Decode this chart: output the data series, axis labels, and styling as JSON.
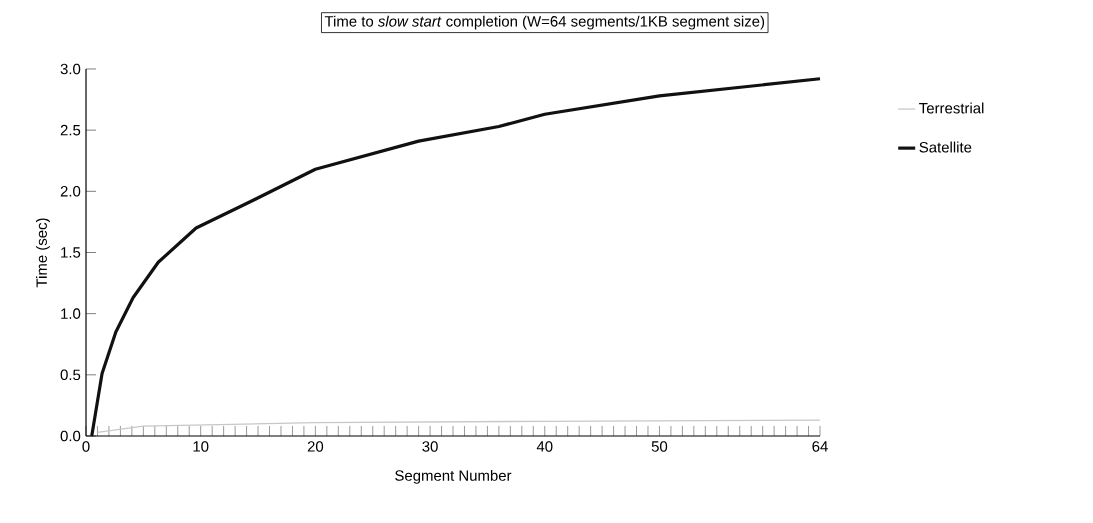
{
  "chart_data": {
    "type": "line",
    "title": "Time to *slow start* completion (W=64 segments/1KB segment size)",
    "xlabel": "Segment Number",
    "ylabel": "Time (sec)",
    "series": [
      {
        "name": "Terrestrial",
        "color": "#c8c8c8",
        "x": [
          1,
          5,
          20,
          40,
          64
        ],
        "values": [
          0.03,
          0.08,
          0.11,
          0.12,
          0.13
        ]
      },
      {
        "name": "Satellite",
        "color": "#111111",
        "x": [
          0.5,
          1.4,
          2.6,
          4.1,
          6.3,
          9.6,
          14,
          20,
          29,
          36,
          40,
          50,
          64
        ],
        "values": [
          0,
          0.51,
          0.85,
          1.13,
          1.42,
          1.7,
          1.9,
          2.18,
          2.41,
          2.53,
          2.63,
          2.78,
          2.92
        ]
      }
    ],
    "xlim": [
      0,
      64
    ],
    "ylim": [
      0,
      3
    ],
    "xticks": [
      0,
      {
        "value": 1,
        "label": null
      },
      {
        "value": 2,
        "label": null
      },
      {
        "value": 3,
        "label": null
      },
      {
        "value": 4,
        "label": null
      },
      {
        "value": 5,
        "label": null
      },
      {
        "value": 6,
        "label": null
      },
      {
        "value": 7,
        "label": null
      },
      {
        "value": 8,
        "label": null
      },
      {
        "value": 9,
        "label": null
      },
      10,
      {
        "value": 11,
        "label": null
      },
      {
        "value": 12,
        "label": null
      },
      {
        "value": 13,
        "label": null
      },
      {
        "value": 14,
        "label": null
      },
      {
        "value": 15,
        "label": null
      },
      {
        "value": 16,
        "label": null
      },
      {
        "value": 17,
        "label": null
      },
      {
        "value": 18,
        "label": null
      },
      {
        "value": 19,
        "label": null
      },
      20,
      {
        "value": 21,
        "label": null
      },
      {
        "value": 22,
        "label": null
      },
      {
        "value": 23,
        "label": null
      },
      {
        "value": 24,
        "label": null
      },
      {
        "value": 25,
        "label": null
      },
      {
        "value": 26,
        "label": null
      },
      {
        "value": 27,
        "label": null
      },
      {
        "value": 28,
        "label": null
      },
      {
        "value": 29,
        "label": null
      },
      30,
      {
        "value": 31,
        "label": null
      },
      {
        "value": 32,
        "label": null
      },
      {
        "value": 33,
        "label": null
      },
      {
        "value": 34,
        "label": null
      },
      {
        "value": 35,
        "label": null
      },
      {
        "value": 36,
        "label": null
      },
      {
        "value": 37,
        "label": null
      },
      {
        "value": 38,
        "label": null
      },
      {
        "value": 39,
        "label": null
      },
      40,
      {
        "value": 41,
        "label": null
      },
      {
        "value": 42,
        "label": null
      },
      {
        "value": 43,
        "label": null
      },
      {
        "value": 44,
        "label": null
      },
      {
        "value": 45,
        "label": null
      },
      {
        "value": 46,
        "label": null
      },
      {
        "value": 47,
        "label": null
      },
      {
        "value": 48,
        "label": null
      },
      {
        "value": 49,
        "label": null
      },
      50,
      {
        "value": 51,
        "label": null
      },
      {
        "value": 52,
        "label": null
      },
      {
        "value": 53,
        "label": null
      },
      {
        "value": 54,
        "label": null
      },
      {
        "value": 55,
        "label": null
      },
      {
        "value": 56,
        "label": null
      },
      {
        "value": 57,
        "label": null
      },
      {
        "value": 58,
        "label": null
      },
      {
        "value": 59,
        "label": null
      },
      {
        "value": 60,
        "label": null
      },
      {
        "value": 61,
        "label": null
      },
      {
        "value": 62,
        "label": null
      },
      {
        "value": 63,
        "label": null
      },
      64
    ],
    "yticks": [
      {
        "value": 0,
        "label": "0.0"
      },
      {
        "value": 0.5,
        "label": "0.5"
      },
      {
        "value": 1,
        "label": "1.0"
      },
      {
        "value": 1.5,
        "label": "1.5"
      },
      {
        "value": 2,
        "label": "2.0"
      },
      {
        "value": 2.5,
        "label": "2.5"
      },
      {
        "value": 3,
        "label": "3.0"
      }
    ],
    "legend": "right",
    "grid": false,
    "marker": "none"
  }
}
